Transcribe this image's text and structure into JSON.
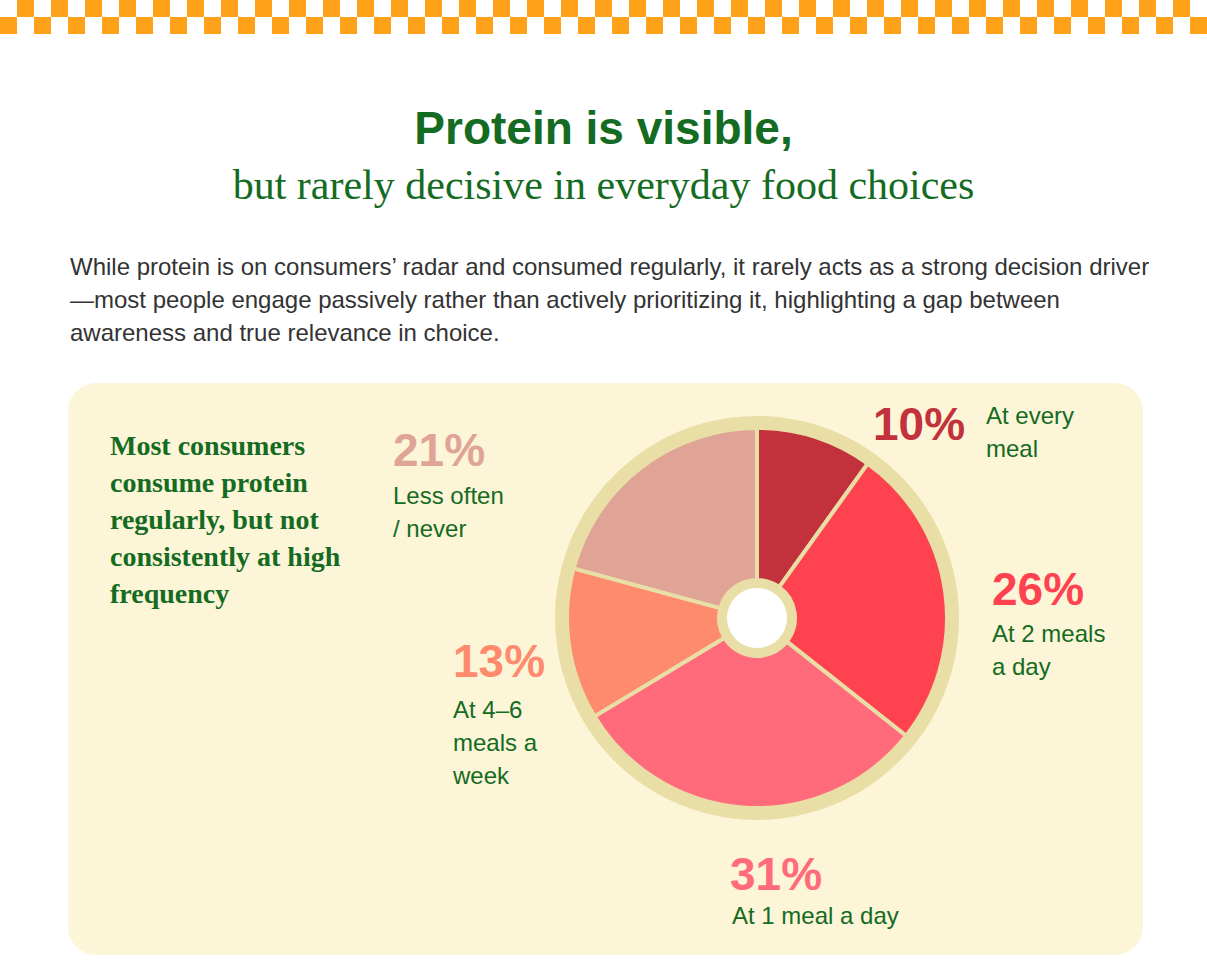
{
  "header": {
    "title": "Protein is visible,",
    "subtitle": "but rarely decisive in everyday food choices",
    "text": "While protein is on consumers’ radar and consumed regularly, it rarely acts as a strong decision driver—most people engage passively rather than actively prioritizing it, highlighting a gap between awareness and true relevance in choice."
  },
  "chart_data": {
    "type": "pie",
    "title": "Most consumers consume protein regularly, but not consistently at high frequency",
    "categories": [
      "At every meal",
      "At 2 meals a day",
      "At 1 meal a day",
      "At 4–6 meals a week",
      "Less often / never"
    ],
    "values": [
      10,
      26,
      31,
      13,
      21
    ],
    "value_labels": [
      "10%",
      "26%",
      "31%",
      "13%",
      "21%"
    ],
    "colors": [
      "#c3323c",
      "#ff4250",
      "#ff6b7b",
      "#ff8b6e",
      "#e0a497"
    ],
    "data_labels": true
  }
}
